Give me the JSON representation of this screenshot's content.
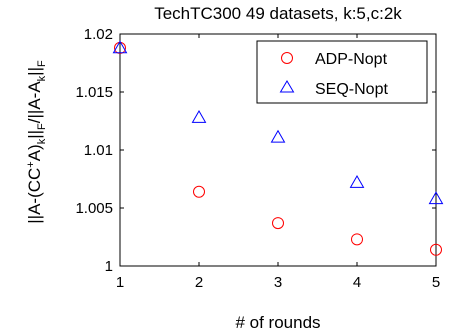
{
  "chart_data": {
    "type": "scatter",
    "title": "TechTC300 49 datasets, k:5,c:2k",
    "xlabel": "# of rounds",
    "ylabel": "||A-(CC+A)k||F/||A-Ak||F",
    "xlim": [
      1,
      5
    ],
    "ylim": [
      1,
      1.02
    ],
    "x_ticks": [
      1,
      2,
      3,
      4,
      5
    ],
    "y_ticks": [
      1,
      1.005,
      1.01,
      1.015,
      1.02
    ],
    "x_tick_labels": [
      "1",
      "2",
      "3",
      "4",
      "5"
    ],
    "y_tick_labels": [
      "1",
      "1.005",
      "1.01",
      "1.015",
      "1.02"
    ],
    "grid": false,
    "legend_position": "top-right",
    "series": [
      {
        "name": "ADP-Nopt",
        "marker": "circle",
        "color": "#ff0000",
        "x": [
          1,
          2,
          3,
          4,
          5
        ],
        "y": [
          1.0188,
          1.0064,
          1.0037,
          1.0023,
          1.0014
        ]
      },
      {
        "name": "SEQ-Nopt",
        "marker": "triangle",
        "color": "#0000ff",
        "x": [
          1,
          2,
          3,
          4,
          5
        ],
        "y": [
          1.0188,
          1.0128,
          1.0111,
          1.0072,
          1.0058
        ]
      }
    ]
  }
}
